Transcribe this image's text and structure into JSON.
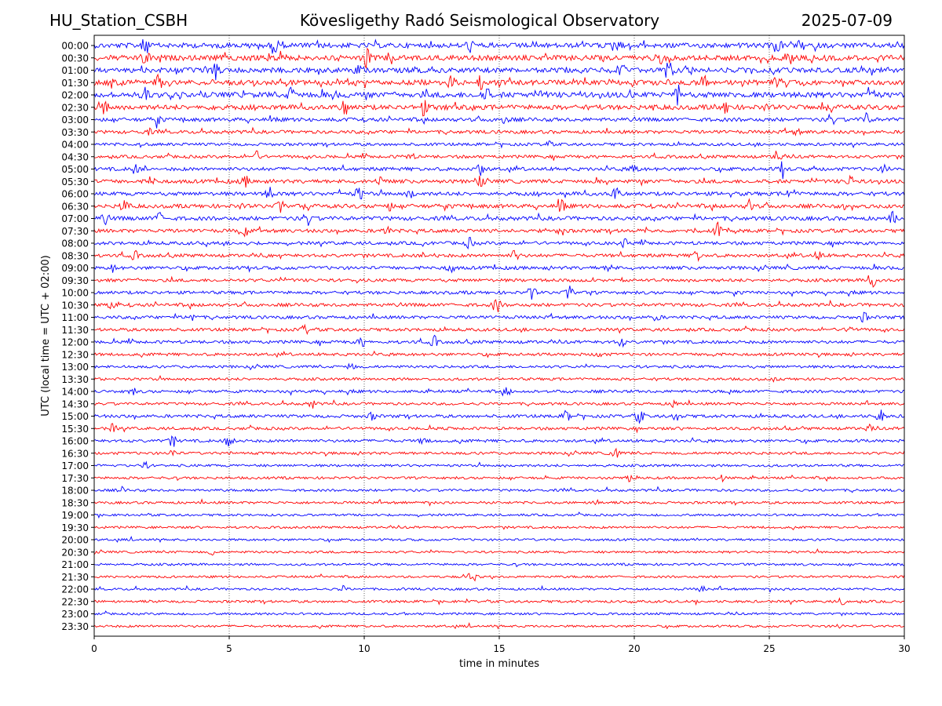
{
  "header": {
    "station": "HU_Station_CSBH",
    "observatory": "Kövesligethy Radó Seismological Observatory",
    "date": "2025-07-09"
  },
  "chart_data": {
    "type": "line",
    "title": "Kövesligethy Radó Seismological Observatory",
    "xlabel": "time in minutes",
    "ylabel": "UTC (local time = UTC + 02:00)",
    "xlim": [
      0,
      30
    ],
    "x_ticks": [
      "0",
      "5",
      "10",
      "15",
      "20",
      "25",
      "30"
    ],
    "grid": "vertical dotted lines at x = 5, 10, 15, 20, 25",
    "trace_labels": [
      "00:00",
      "00:30",
      "01:00",
      "01:30",
      "02:00",
      "02:30",
      "03:00",
      "03:30",
      "04:00",
      "04:30",
      "05:00",
      "05:30",
      "06:00",
      "06:30",
      "07:00",
      "07:30",
      "08:00",
      "08:30",
      "09:00",
      "09:30",
      "10:00",
      "10:30",
      "11:00",
      "11:30",
      "12:00",
      "12:30",
      "13:00",
      "13:30",
      "14:00",
      "14:30",
      "15:00",
      "15:30",
      "16:00",
      "16:30",
      "17:00",
      "17:30",
      "18:00",
      "18:30",
      "19:00",
      "19:30",
      "20:00",
      "20:30",
      "21:00",
      "21:30",
      "22:00",
      "22:30",
      "23:00",
      "23:30"
    ],
    "colors": {
      "hour_trace": "#0000ff",
      "half_hour_trace": "#ff0000"
    },
    "noise_level": [
      0.85,
      0.9,
      0.85,
      0.85,
      0.95,
      0.8,
      0.55,
      0.45,
      0.35,
      0.4,
      0.5,
      0.55,
      0.55,
      0.6,
      0.6,
      0.5,
      0.45,
      0.45,
      0.45,
      0.4,
      0.4,
      0.45,
      0.4,
      0.4,
      0.4,
      0.35,
      0.3,
      0.3,
      0.35,
      0.3,
      0.4,
      0.35,
      0.35,
      0.3,
      0.25,
      0.25,
      0.25,
      0.25,
      0.2,
      0.2,
      0.2,
      0.2,
      0.2,
      0.2,
      0.2,
      0.25,
      0.2,
      0.2
    ],
    "events": [
      {
        "trace": "00:00",
        "t": 1.9,
        "amp": 1.0
      },
      {
        "trace": "00:00",
        "t": 6.7,
        "amp": 1.1
      },
      {
        "trace": "00:00",
        "t": 13.9,
        "amp": 0.8
      },
      {
        "trace": "00:00",
        "t": 19.3,
        "amp": 0.9
      },
      {
        "trace": "00:00",
        "t": 25.3,
        "amp": 1.2
      },
      {
        "trace": "00:30",
        "t": 1.9,
        "amp": 1.0
      },
      {
        "trace": "00:30",
        "t": 6.9,
        "amp": 1.2
      },
      {
        "trace": "00:30",
        "t": 10.1,
        "amp": 1.1
      },
      {
        "trace": "00:30",
        "t": 11.0,
        "amp": 0.8
      },
      {
        "trace": "00:30",
        "t": 21.0,
        "amp": 0.9
      },
      {
        "trace": "00:30",
        "t": 25.8,
        "amp": 1.3
      },
      {
        "trace": "01:00",
        "t": 4.5,
        "amp": 1.1
      },
      {
        "trace": "01:00",
        "t": 9.8,
        "amp": 0.8
      },
      {
        "trace": "01:00",
        "t": 19.5,
        "amp": 1.0
      },
      {
        "trace": "01:00",
        "t": 21.3,
        "amp": 1.1
      },
      {
        "trace": "01:30",
        "t": 0.6,
        "amp": 0.9
      },
      {
        "trace": "01:30",
        "t": 2.4,
        "amp": 1.0
      },
      {
        "trace": "01:30",
        "t": 13.2,
        "amp": 0.9
      },
      {
        "trace": "01:30",
        "t": 14.3,
        "amp": 0.8
      },
      {
        "trace": "01:30",
        "t": 22.6,
        "amp": 0.9
      },
      {
        "trace": "01:30",
        "t": 25.3,
        "amp": 0.9
      },
      {
        "trace": "02:00",
        "t": 1.9,
        "amp": 1.0
      },
      {
        "trace": "02:00",
        "t": 7.3,
        "amp": 1.0
      },
      {
        "trace": "02:00",
        "t": 14.5,
        "amp": 1.1
      },
      {
        "trace": "02:00",
        "t": 21.6,
        "amp": 1.2
      },
      {
        "trace": "02:00",
        "t": 28.8,
        "amp": 0.9
      },
      {
        "trace": "02:30",
        "t": 0.4,
        "amp": 1.0
      },
      {
        "trace": "02:30",
        "t": 9.3,
        "amp": 1.1
      },
      {
        "trace": "02:30",
        "t": 12.2,
        "amp": 1.0
      },
      {
        "trace": "02:30",
        "t": 23.4,
        "amp": 0.8
      },
      {
        "trace": "03:00",
        "t": 2.3,
        "amp": 0.7
      },
      {
        "trace": "03:00",
        "t": 15.2,
        "amp": 0.6
      },
      {
        "trace": "03:00",
        "t": 27.3,
        "amp": 0.8
      },
      {
        "trace": "03:00",
        "t": 28.6,
        "amp": 0.9
      },
      {
        "trace": "03:30",
        "t": 2.0,
        "amp": 0.4
      },
      {
        "trace": "03:30",
        "t": 26.0,
        "amp": 0.4
      },
      {
        "trace": "04:00",
        "t": 16.8,
        "amp": 0.5
      },
      {
        "trace": "04:30",
        "t": 6.0,
        "amp": 0.7
      },
      {
        "trace": "04:30",
        "t": 11.7,
        "amp": 0.6
      },
      {
        "trace": "04:30",
        "t": 25.3,
        "amp": 1.0
      },
      {
        "trace": "05:00",
        "t": 1.5,
        "amp": 0.6
      },
      {
        "trace": "05:00",
        "t": 14.3,
        "amp": 0.9
      },
      {
        "trace": "05:00",
        "t": 20.0,
        "amp": 0.7
      },
      {
        "trace": "05:00",
        "t": 25.5,
        "amp": 1.0
      },
      {
        "trace": "05:00",
        "t": 29.3,
        "amp": 0.6
      },
      {
        "trace": "05:30",
        "t": 2.1,
        "amp": 0.8
      },
      {
        "trace": "05:30",
        "t": 5.6,
        "amp": 0.7
      },
      {
        "trace": "05:30",
        "t": 10.6,
        "amp": 0.7
      },
      {
        "trace": "05:30",
        "t": 14.3,
        "amp": 0.6
      },
      {
        "trace": "05:30",
        "t": 28.0,
        "amp": 0.7
      },
      {
        "trace": "06:00",
        "t": 6.5,
        "amp": 0.8
      },
      {
        "trace": "06:00",
        "t": 9.8,
        "amp": 1.0
      },
      {
        "trace": "06:00",
        "t": 11.7,
        "amp": 0.7
      },
      {
        "trace": "06:00",
        "t": 19.3,
        "amp": 0.9
      },
      {
        "trace": "06:00",
        "t": 25.8,
        "amp": 0.9
      },
      {
        "trace": "06:30",
        "t": 1.1,
        "amp": 0.9
      },
      {
        "trace": "06:30",
        "t": 6.9,
        "amp": 0.9
      },
      {
        "trace": "06:30",
        "t": 10.9,
        "amp": 0.7
      },
      {
        "trace": "06:30",
        "t": 17.3,
        "amp": 0.8
      },
      {
        "trace": "06:30",
        "t": 24.3,
        "amp": 0.9
      },
      {
        "trace": "07:00",
        "t": 0.4,
        "amp": 0.7
      },
      {
        "trace": "07:00",
        "t": 2.4,
        "amp": 0.8
      },
      {
        "trace": "07:00",
        "t": 7.9,
        "amp": 1.0
      },
      {
        "trace": "07:00",
        "t": 29.6,
        "amp": 0.8
      },
      {
        "trace": "07:30",
        "t": 5.6,
        "amp": 0.9
      },
      {
        "trace": "07:30",
        "t": 10.8,
        "amp": 0.6
      },
      {
        "trace": "07:30",
        "t": 17.3,
        "amp": 0.6
      },
      {
        "trace": "07:30",
        "t": 23.1,
        "amp": 1.0
      },
      {
        "trace": "08:00",
        "t": 13.9,
        "amp": 0.7
      },
      {
        "trace": "08:00",
        "t": 19.6,
        "amp": 0.6
      },
      {
        "trace": "08:30",
        "t": 1.5,
        "amp": 0.6
      },
      {
        "trace": "08:30",
        "t": 12.7,
        "amp": 0.6
      },
      {
        "trace": "08:30",
        "t": 15.6,
        "amp": 0.8
      },
      {
        "trace": "08:30",
        "t": 22.3,
        "amp": 0.8
      },
      {
        "trace": "08:30",
        "t": 26.8,
        "amp": 0.8
      },
      {
        "trace": "09:00",
        "t": 0.7,
        "amp": 0.5
      },
      {
        "trace": "09:00",
        "t": 13.2,
        "amp": 0.6
      },
      {
        "trace": "09:00",
        "t": 19.1,
        "amp": 0.6
      },
      {
        "trace": "09:30",
        "t": 28.8,
        "amp": 0.9
      },
      {
        "trace": "10:00",
        "t": 16.2,
        "amp": 0.9
      },
      {
        "trace": "10:00",
        "t": 17.6,
        "amp": 1.1
      },
      {
        "trace": "10:30",
        "t": 0.6,
        "amp": 0.5
      },
      {
        "trace": "10:30",
        "t": 14.9,
        "amp": 1.1
      },
      {
        "trace": "11:00",
        "t": 3.6,
        "amp": 0.6
      },
      {
        "trace": "11:00",
        "t": 20.8,
        "amp": 0.6
      },
      {
        "trace": "11:00",
        "t": 28.5,
        "amp": 0.7
      },
      {
        "trace": "11:30",
        "t": 7.8,
        "amp": 0.6
      },
      {
        "trace": "11:30",
        "t": 28.0,
        "amp": 0.6
      },
      {
        "trace": "12:00",
        "t": 9.9,
        "amp": 0.6
      },
      {
        "trace": "12:00",
        "t": 12.6,
        "amp": 0.8
      },
      {
        "trace": "12:00",
        "t": 19.5,
        "amp": 0.7
      },
      {
        "trace": "12:30",
        "t": 18.7,
        "amp": 0.4
      },
      {
        "trace": "12:30",
        "t": 22.9,
        "amp": 0.3
      },
      {
        "trace": "13:00",
        "t": 9.5,
        "amp": 0.5
      },
      {
        "trace": "14:00",
        "t": 1.4,
        "amp": 0.5
      },
      {
        "trace": "14:00",
        "t": 15.3,
        "amp": 0.5
      },
      {
        "trace": "14:30",
        "t": 8.1,
        "amp": 0.6
      },
      {
        "trace": "14:30",
        "t": 21.5,
        "amp": 0.6
      },
      {
        "trace": "15:00",
        "t": 10.3,
        "amp": 0.5
      },
      {
        "trace": "15:00",
        "t": 17.5,
        "amp": 0.7
      },
      {
        "trace": "15:00",
        "t": 20.2,
        "amp": 1.0
      },
      {
        "trace": "15:00",
        "t": 21.6,
        "amp": 0.8
      },
      {
        "trace": "15:00",
        "t": 29.1,
        "amp": 0.9
      },
      {
        "trace": "15:30",
        "t": 0.7,
        "amp": 0.6
      },
      {
        "trace": "15:30",
        "t": 28.7,
        "amp": 0.5
      },
      {
        "trace": "16:00",
        "t": 2.9,
        "amp": 0.8
      },
      {
        "trace": "16:00",
        "t": 5.0,
        "amp": 0.9
      },
      {
        "trace": "16:00",
        "t": 12.2,
        "amp": 0.5
      },
      {
        "trace": "16:30",
        "t": 2.9,
        "amp": 0.5
      },
      {
        "trace": "16:30",
        "t": 19.3,
        "amp": 0.9
      },
      {
        "trace": "17:00",
        "t": 1.9,
        "amp": 0.4
      },
      {
        "trace": "17:30",
        "t": 19.8,
        "amp": 0.4
      },
      {
        "trace": "17:30",
        "t": 23.2,
        "amp": 0.5
      },
      {
        "trace": "18:00",
        "t": 1.0,
        "amp": 0.4
      },
      {
        "trace": "18:30",
        "t": 18.6,
        "amp": 0.5
      },
      {
        "trace": "20:30",
        "t": 4.4,
        "amp": 0.4
      },
      {
        "trace": "21:30",
        "t": 14.0,
        "amp": 1.0
      },
      {
        "trace": "22:00",
        "t": 9.2,
        "amp": 0.4
      },
      {
        "trace": "22:00",
        "t": 22.5,
        "amp": 0.4
      },
      {
        "trace": "22:30",
        "t": 27.7,
        "amp": 0.5
      },
      {
        "trace": "23:30",
        "t": 27.6,
        "amp": 0.3
      }
    ]
  }
}
